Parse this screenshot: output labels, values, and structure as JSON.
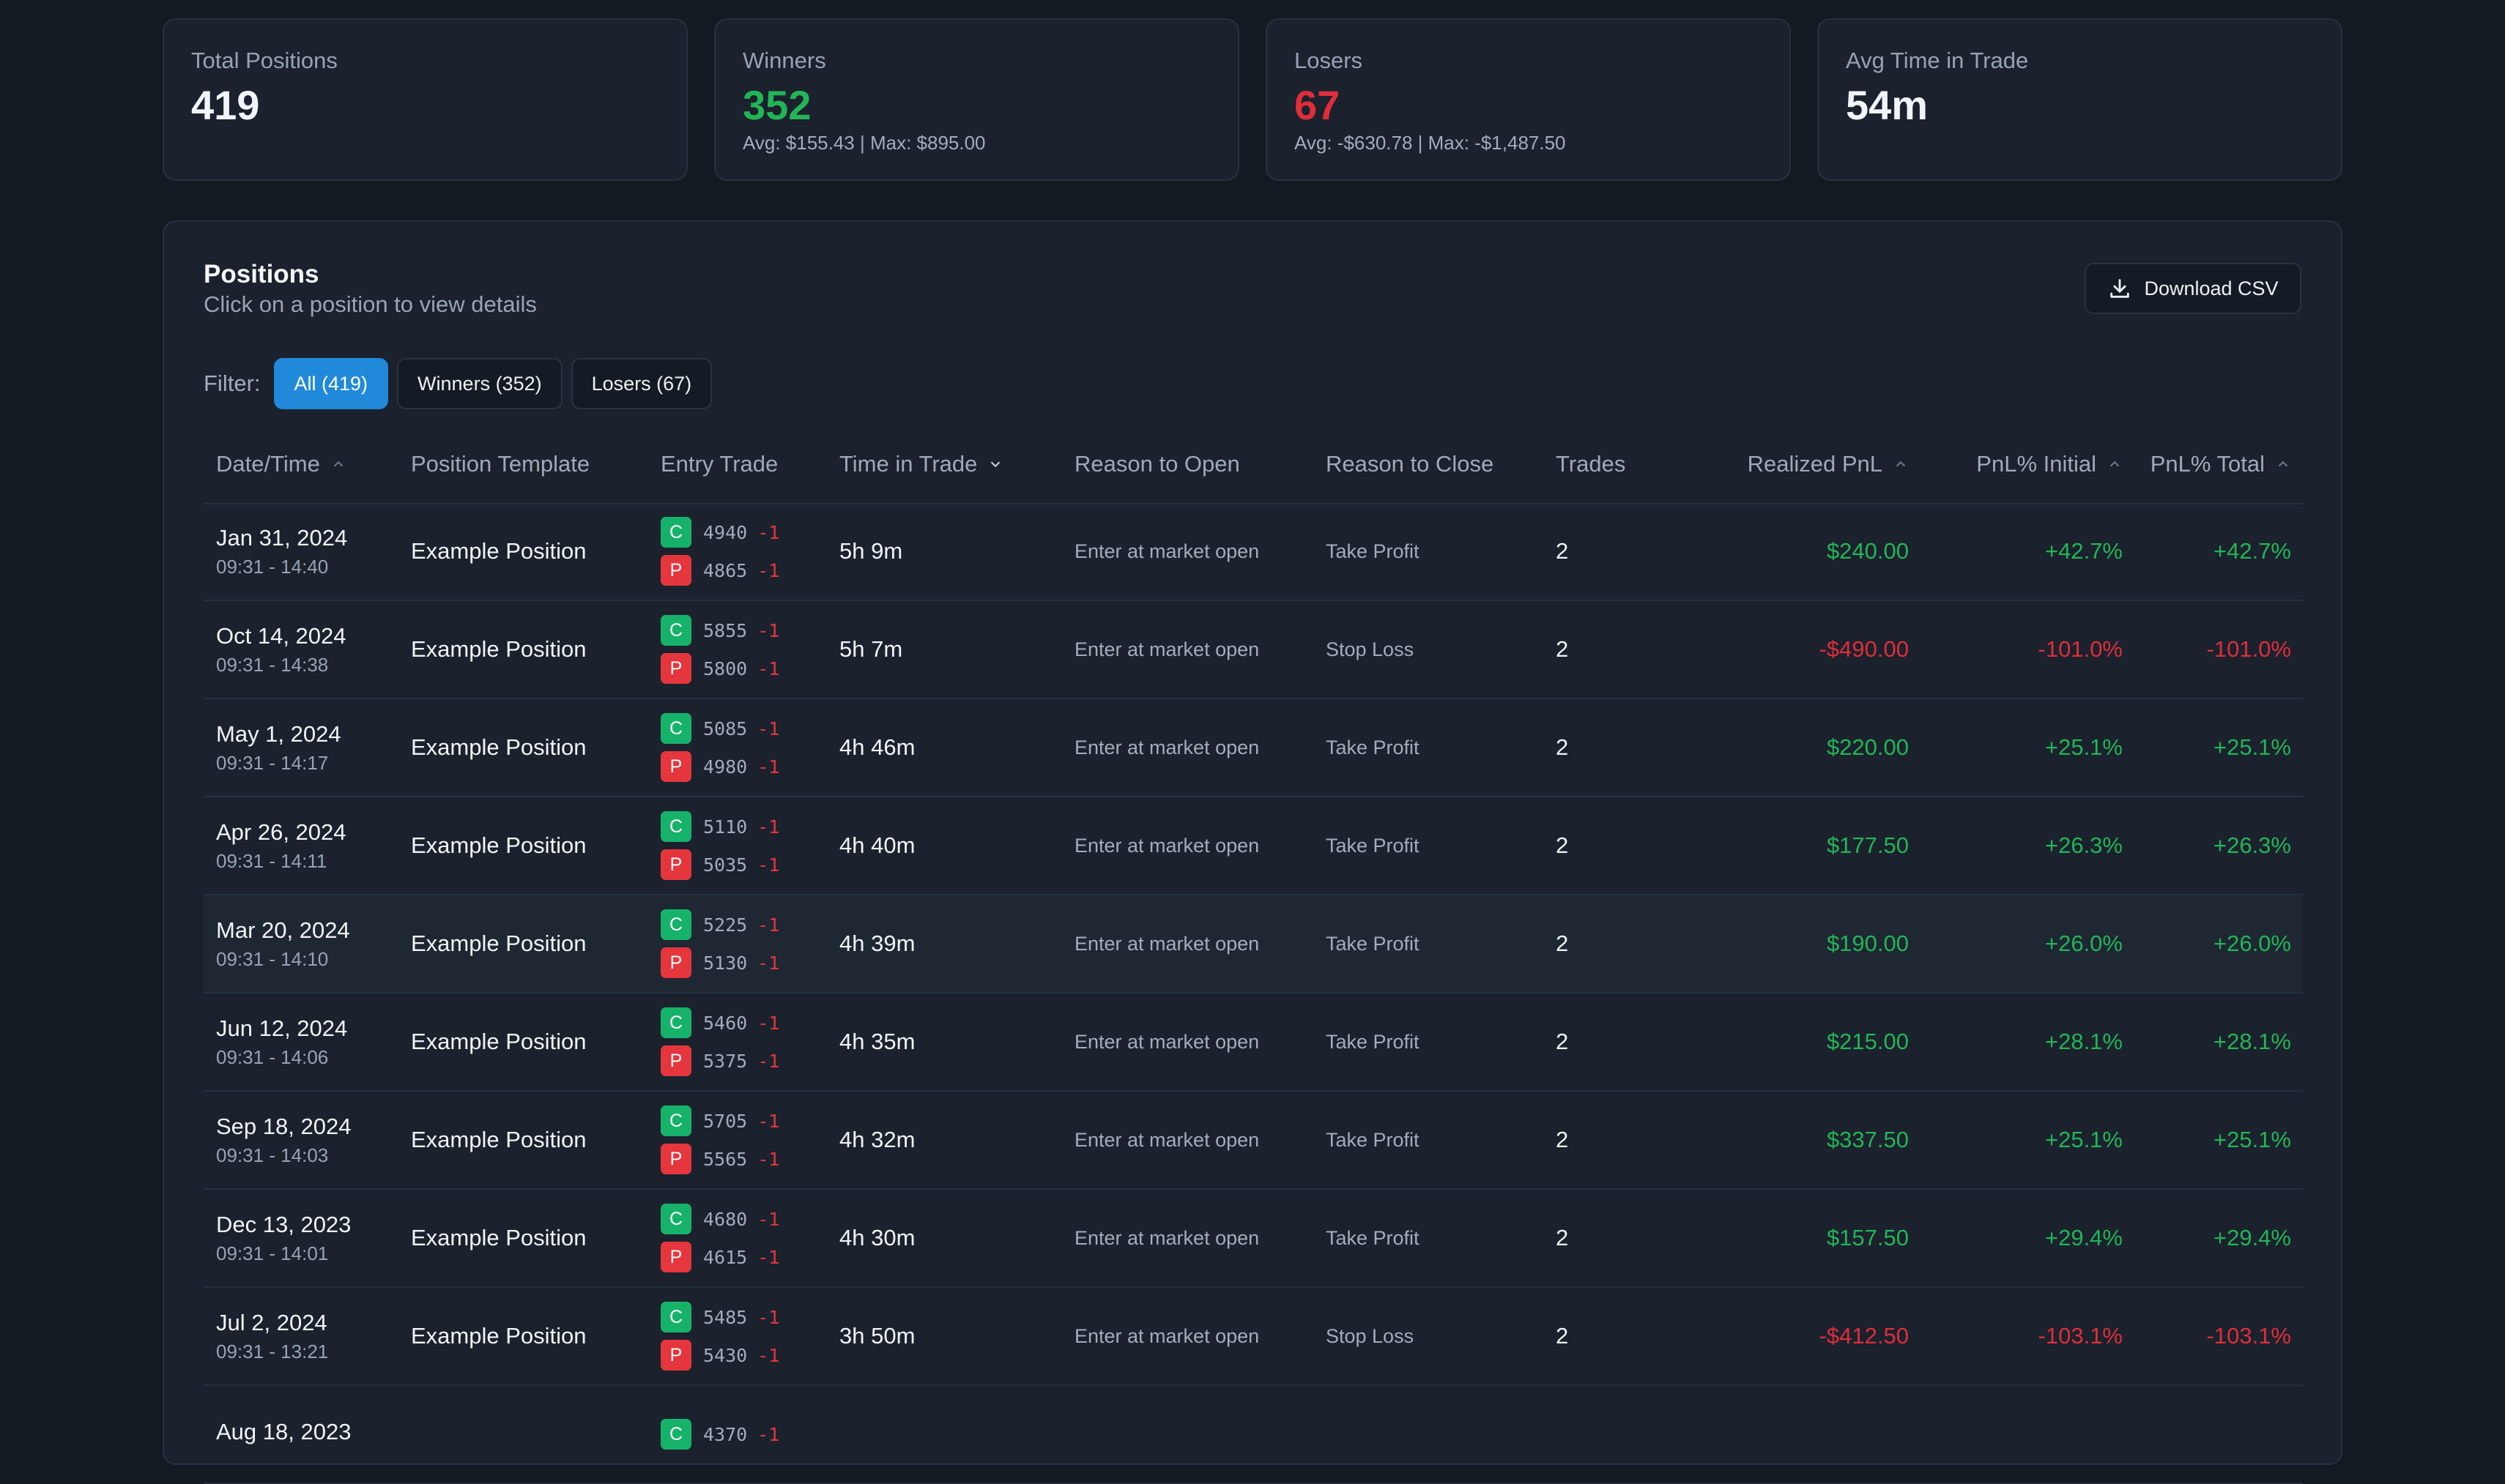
{
  "stats": {
    "total": {
      "label": "Total Positions",
      "value": "419"
    },
    "winners": {
      "label": "Winners",
      "value": "352",
      "sub": "Avg: $155.43 | Max: $895.00"
    },
    "losers": {
      "label": "Losers",
      "value": "67",
      "sub": "Avg: -$630.78 | Max: -$1,487.50"
    },
    "avg_time": {
      "label": "Avg Time in Trade",
      "value": "54m"
    }
  },
  "panel": {
    "title": "Positions",
    "subtitle": "Click on a position to view details",
    "download_label": "Download CSV",
    "filter_label": "Filter:",
    "filters": [
      "All (419)",
      "Winners (352)",
      "Losers (67)"
    ],
    "active_filter": "All (419)"
  },
  "columns": {
    "datetime": "Date/Time",
    "template": "Position Template",
    "entry": "Entry Trade",
    "time_in_trade": "Time in Trade",
    "reason_open": "Reason to Open",
    "reason_close": "Reason to Close",
    "trades": "Trades",
    "realized_pnl": "Realized PnL",
    "pnl_initial": "PnL% Initial",
    "pnl_total": "PnL% Total"
  },
  "rows": [
    {
      "date": "Jan 31, 2024",
      "time": "09:31 - 14:40",
      "template": "Example Position",
      "legs": [
        {
          "type": "C",
          "strike": "4940",
          "qty": "-1"
        },
        {
          "type": "P",
          "strike": "4865",
          "qty": "-1"
        }
      ],
      "tit": "5h 9m",
      "open": "Enter at market open",
      "close": "Take Profit",
      "trades": "2",
      "pnl": "$240.00",
      "pi": "+42.7%",
      "pt": "+42.7%",
      "win": true
    },
    {
      "date": "Oct 14, 2024",
      "time": "09:31 - 14:38",
      "template": "Example Position",
      "legs": [
        {
          "type": "C",
          "strike": "5855",
          "qty": "-1"
        },
        {
          "type": "P",
          "strike": "5800",
          "qty": "-1"
        }
      ],
      "tit": "5h 7m",
      "open": "Enter at market open",
      "close": "Stop Loss",
      "trades": "2",
      "pnl": "-$490.00",
      "pi": "-101.0%",
      "pt": "-101.0%",
      "win": false
    },
    {
      "date": "May 1, 2024",
      "time": "09:31 - 14:17",
      "template": "Example Position",
      "legs": [
        {
          "type": "C",
          "strike": "5085",
          "qty": "-1"
        },
        {
          "type": "P",
          "strike": "4980",
          "qty": "-1"
        }
      ],
      "tit": "4h 46m",
      "open": "Enter at market open",
      "close": "Take Profit",
      "trades": "2",
      "pnl": "$220.00",
      "pi": "+25.1%",
      "pt": "+25.1%",
      "win": true
    },
    {
      "date": "Apr 26, 2024",
      "time": "09:31 - 14:11",
      "template": "Example Position",
      "legs": [
        {
          "type": "C",
          "strike": "5110",
          "qty": "-1"
        },
        {
          "type": "P",
          "strike": "5035",
          "qty": "-1"
        }
      ],
      "tit": "4h 40m",
      "open": "Enter at market open",
      "close": "Take Profit",
      "trades": "2",
      "pnl": "$177.50",
      "pi": "+26.3%",
      "pt": "+26.3%",
      "win": true
    },
    {
      "date": "Mar 20, 2024",
      "time": "09:31 - 14:10",
      "template": "Example Position",
      "legs": [
        {
          "type": "C",
          "strike": "5225",
          "qty": "-1"
        },
        {
          "type": "P",
          "strike": "5130",
          "qty": "-1"
        }
      ],
      "tit": "4h 39m",
      "open": "Enter at market open",
      "close": "Take Profit",
      "trades": "2",
      "pnl": "$190.00",
      "pi": "+26.0%",
      "pt": "+26.0%",
      "win": true,
      "highlight": true
    },
    {
      "date": "Jun 12, 2024",
      "time": "09:31 - 14:06",
      "template": "Example Position",
      "legs": [
        {
          "type": "C",
          "strike": "5460",
          "qty": "-1"
        },
        {
          "type": "P",
          "strike": "5375",
          "qty": "-1"
        }
      ],
      "tit": "4h 35m",
      "open": "Enter at market open",
      "close": "Take Profit",
      "trades": "2",
      "pnl": "$215.00",
      "pi": "+28.1%",
      "pt": "+28.1%",
      "win": true
    },
    {
      "date": "Sep 18, 2024",
      "time": "09:31 - 14:03",
      "template": "Example Position",
      "legs": [
        {
          "type": "C",
          "strike": "5705",
          "qty": "-1"
        },
        {
          "type": "P",
          "strike": "5565",
          "qty": "-1"
        }
      ],
      "tit": "4h 32m",
      "open": "Enter at market open",
      "close": "Take Profit",
      "trades": "2",
      "pnl": "$337.50",
      "pi": "+25.1%",
      "pt": "+25.1%",
      "win": true
    },
    {
      "date": "Dec 13, 2023",
      "time": "09:31 - 14:01",
      "template": "Example Position",
      "legs": [
        {
          "type": "C",
          "strike": "4680",
          "qty": "-1"
        },
        {
          "type": "P",
          "strike": "4615",
          "qty": "-1"
        }
      ],
      "tit": "4h 30m",
      "open": "Enter at market open",
      "close": "Take Profit",
      "trades": "2",
      "pnl": "$157.50",
      "pi": "+29.4%",
      "pt": "+29.4%",
      "win": true
    },
    {
      "date": "Jul 2, 2024",
      "time": "09:31 - 13:21",
      "template": "Example Position",
      "legs": [
        {
          "type": "C",
          "strike": "5485",
          "qty": "-1"
        },
        {
          "type": "P",
          "strike": "5430",
          "qty": "-1"
        }
      ],
      "tit": "3h 50m",
      "open": "Enter at market open",
      "close": "Stop Loss",
      "trades": "2",
      "pnl": "-$412.50",
      "pi": "-103.1%",
      "pt": "-103.1%",
      "win": false
    },
    {
      "date": "Aug 18, 2023",
      "time": "",
      "template": "",
      "legs": [
        {
          "type": "C",
          "strike": "4370",
          "qty": "-1"
        }
      ],
      "tit": "",
      "open": "",
      "close": "",
      "trades": "",
      "pnl": "",
      "pi": "",
      "pt": "",
      "win": true
    }
  ],
  "colors": {
    "win": "#22b556",
    "loss": "#e02d3a",
    "accent": "#2189d9"
  }
}
